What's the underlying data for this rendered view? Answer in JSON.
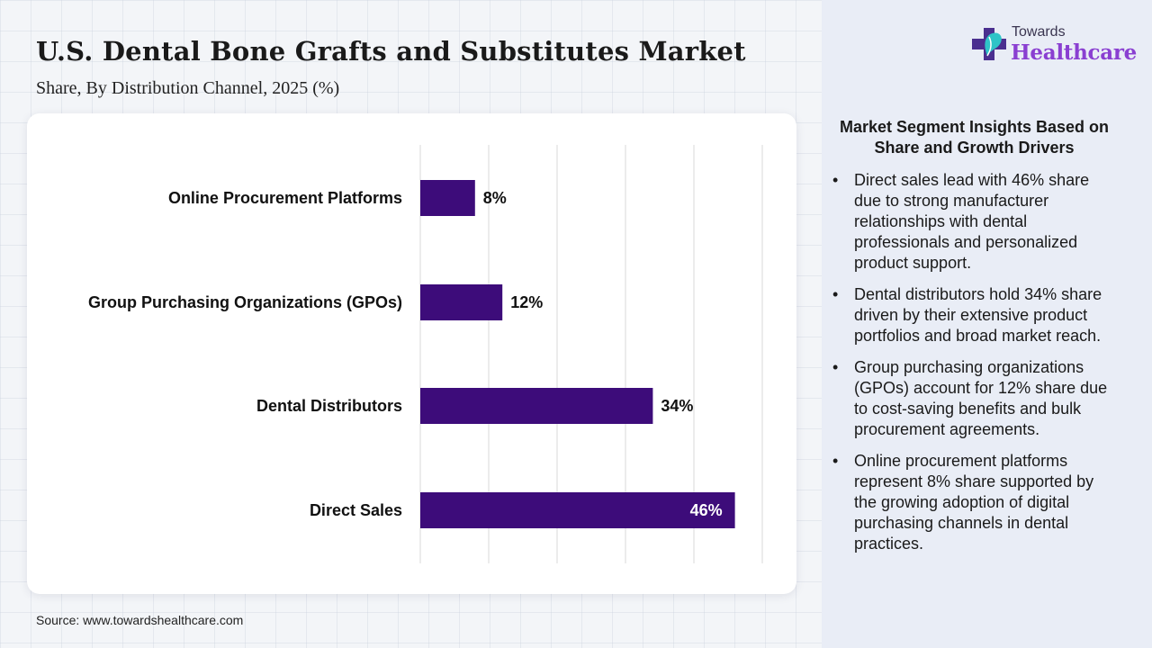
{
  "header": {
    "title": "U.S. Dental Bone Grafts and Substitutes Market",
    "subtitle": "Share, By Distribution Channel, 2025 (%)"
  },
  "source": "Source: www.towardshealthcare.com",
  "logo": {
    "line1": "Towards",
    "line2": "Healthcare"
  },
  "colors": {
    "bar": "#3d0c7a",
    "logo_accent": "#8a3fd1",
    "panel_bg": "#e9edf6"
  },
  "chart_data": {
    "type": "bar",
    "orientation": "horizontal",
    "categories": [
      "Online Procurement Platforms",
      "Group Purchasing Organizations (GPOs)",
      "Dental Distributors",
      "Direct Sales"
    ],
    "values": [
      8,
      12,
      34,
      46
    ],
    "value_labels": [
      "8%",
      "12%",
      "34%",
      "46%"
    ],
    "xlim": [
      0,
      50
    ],
    "grid": true
  },
  "insights": {
    "title": "Market Segment Insights Based on Share and Growth Drivers",
    "items": [
      "Direct sales lead with 46% share due to strong manufacturer relationships with dental professionals and personalized product support.",
      "Dental distributors hold 34% share driven by their extensive product portfolios and broad market reach.",
      "Group purchasing organizations (GPOs) account for 12% share due to cost-saving benefits and bulk procurement agreements.",
      "Online procurement platforms represent 8% share supported by the growing adoption of digital purchasing channels in dental practices."
    ]
  }
}
